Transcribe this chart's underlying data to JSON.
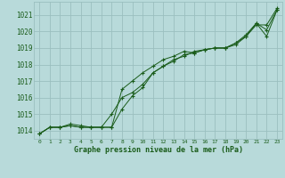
{
  "title": "Graphe pression niveau de la mer (hPa)",
  "bg_color": "#b8dada",
  "grid_color": "#9bbfbf",
  "line_color": "#1a5c1a",
  "xlim": [
    -0.5,
    23.5
  ],
  "ylim": [
    1013.5,
    1021.8
  ],
  "yticks": [
    1014,
    1015,
    1016,
    1017,
    1018,
    1019,
    1020,
    1021
  ],
  "xticks": [
    0,
    1,
    2,
    3,
    4,
    5,
    6,
    7,
    8,
    9,
    10,
    11,
    12,
    13,
    14,
    15,
    16,
    17,
    18,
    19,
    20,
    21,
    22,
    23
  ],
  "series": [
    [
      1013.8,
      1014.2,
      1014.2,
      1014.4,
      1014.3,
      1014.2,
      1014.2,
      1014.2,
      1015.3,
      1016.1,
      1016.6,
      1017.5,
      1017.9,
      1018.2,
      1018.6,
      1018.7,
      1018.9,
      1019.0,
      1019.0,
      1019.2,
      1019.7,
      1020.4,
      1020.4,
      1021.4
    ],
    [
      1013.8,
      1014.2,
      1014.2,
      1014.3,
      1014.2,
      1014.2,
      1014.2,
      1015.0,
      1016.0,
      1016.3,
      1016.8,
      1017.5,
      1017.9,
      1018.3,
      1018.5,
      1018.8,
      1018.9,
      1019.0,
      1019.0,
      1019.3,
      1019.7,
      1020.5,
      1019.7,
      1021.3
    ],
    [
      1013.8,
      1014.2,
      1014.2,
      1014.3,
      1014.2,
      1014.2,
      1014.2,
      1014.2,
      1016.5,
      1017.0,
      1017.5,
      1017.9,
      1018.3,
      1018.5,
      1018.8,
      1018.7,
      1018.9,
      1019.0,
      1019.0,
      1019.3,
      1019.8,
      1020.5,
      1020.1,
      1021.3
    ]
  ],
  "ytick_labels": [
    "1014",
    "1015",
    "1016",
    "1017",
    "1018",
    "1019",
    "1020",
    "1021"
  ]
}
